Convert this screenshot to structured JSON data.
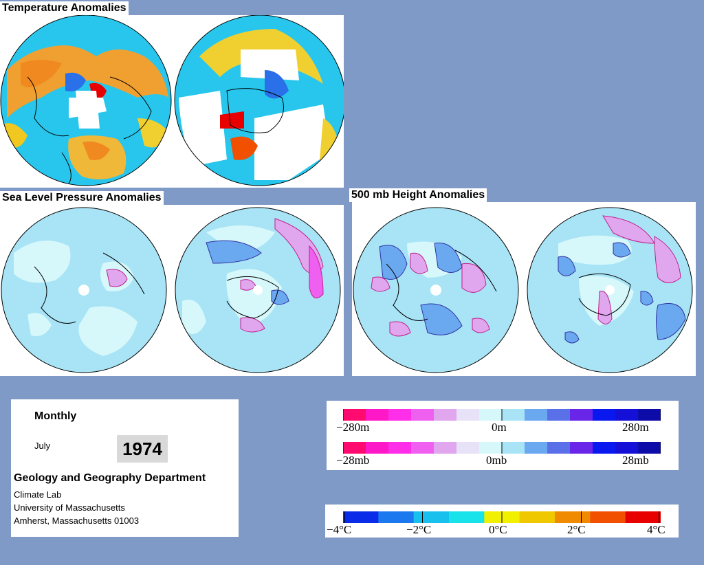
{
  "sections": {
    "temperature": "Temperature Anomalies",
    "slp": "Sea Level Pressure Anomalies",
    "height": "500 mb Height Anomalies"
  },
  "info": {
    "period": "Monthly",
    "month": "July",
    "year": "1974",
    "department": "Geology and Geography Department",
    "lab": "Climate Lab",
    "university": "University of Massachusetts",
    "address": "Amherst, Massachusetts 01003"
  },
  "legend_height": {
    "min": "−280m",
    "mid": "0m",
    "max": "280m"
  },
  "legend_pressure": {
    "min": "−28mb",
    "mid": "0mb",
    "max": "28mb"
  },
  "legend_temp": {
    "t1": "−4°C",
    "t2": "−2°C",
    "t3": "0°C",
    "t4": "2°C",
    "t5": "4°C"
  },
  "colors": {
    "background": "#7f9ac6",
    "anomaly_scale": [
      "#ff0a6e",
      "#ff18c8",
      "#ff2ee8",
      "#f060f0",
      "#e0a6ee",
      "#e8e2f8",
      "#d6f8fa",
      "#a8e4f6",
      "#6aa8f0",
      "#5a70e8",
      "#6a26e8",
      "#0a18f0",
      "#1410d8",
      "#0e0ca8"
    ],
    "temp_scale": [
      "#0a2ce8",
      "#1c78ee",
      "#18c0ee",
      "#18e2ea",
      "#f0f000",
      "#f0c800",
      "#f08a00",
      "#f05000",
      "#e80000"
    ]
  }
}
